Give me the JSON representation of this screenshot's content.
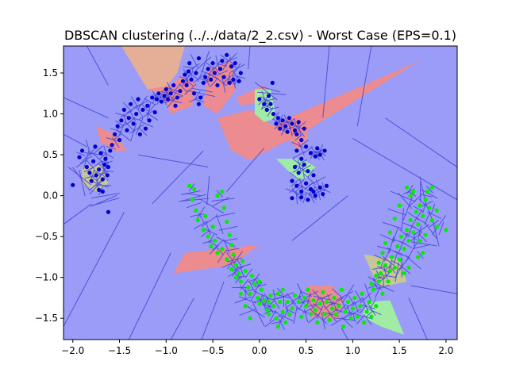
{
  "chart_data": {
    "type": "scatter",
    "title": "DBSCAN clustering (../../data/2_2.csv) - Worst Case (EPS=0.1)",
    "xlabel": "",
    "ylabel": "",
    "xlim": [
      -2.1,
      2.12
    ],
    "ylim": [
      -1.76,
      1.83
    ],
    "xticks": [
      -2.0,
      -1.5,
      -1.0,
      -0.5,
      0.0,
      0.5,
      1.0,
      1.5,
      2.0
    ],
    "xtick_labels": [
      "−2.0",
      "−1.5",
      "−1.0",
      "−0.5",
      "0.0",
      "0.5",
      "1.0",
      "1.5",
      "2.0"
    ],
    "yticks": [
      -1.5,
      -1.0,
      -0.5,
      0.0,
      0.5,
      1.0,
      1.5
    ],
    "ytick_labels": [
      "−1.5",
      "−1.0",
      "−0.5",
      "0.0",
      "0.5",
      "1.0",
      "1.5"
    ],
    "grid": false,
    "background_color": "#9a9cf8",
    "edge_color": "#4a4ad8",
    "colors": {
      "blue_points": "#0000cc",
      "green_points": "#00ee00",
      "region_red": "#f08a8a",
      "region_green": "#a0f0a0",
      "region_olive": "#c8c890",
      "region_orange": "#e8b090"
    },
    "series": [
      {
        "color": "#0000cc",
        "points": [
          [
            -2.0,
            0.13
          ],
          [
            -1.93,
            0.47
          ],
          [
            -1.9,
            0.55
          ],
          [
            -1.85,
            0.35
          ],
          [
            -1.82,
            0.28
          ],
          [
            -1.8,
            0.18
          ],
          [
            -1.78,
            0.42
          ],
          [
            -1.76,
            0.6
          ],
          [
            -1.75,
            0.25
          ],
          [
            -1.72,
            0.32
          ],
          [
            -1.7,
            0.52
          ],
          [
            -1.68,
            0.2
          ],
          [
            -1.66,
            0.38
          ],
          [
            -1.65,
            0.45
          ],
          [
            -1.63,
            0.25
          ],
          [
            -1.62,
            0.35
          ],
          [
            -1.6,
            0.55
          ],
          [
            -1.58,
            0.62
          ],
          [
            -1.68,
            0.05
          ],
          [
            -1.62,
            -0.2
          ],
          [
            -1.72,
            0.07
          ],
          [
            -1.55,
            0.75
          ],
          [
            -1.52,
            0.85
          ],
          [
            -1.5,
            0.68
          ],
          [
            -1.48,
            0.92
          ],
          [
            -1.45,
            1.05
          ],
          [
            -1.42,
            0.8
          ],
          [
            -1.4,
            0.95
          ],
          [
            -1.38,
            1.12
          ],
          [
            -1.35,
            0.88
          ],
          [
            -1.32,
            1.0
          ],
          [
            -1.3,
            1.18
          ],
          [
            -1.28,
            0.75
          ],
          [
            -1.25,
            1.05
          ],
          [
            -1.22,
            0.82
          ],
          [
            -1.2,
            1.1
          ],
          [
            -1.18,
            0.92
          ],
          [
            -1.15,
            1.2
          ],
          [
            -1.12,
            1.02
          ],
          [
            -1.1,
            1.18
          ],
          [
            -1.08,
            1.25
          ],
          [
            -1.05,
            1.15
          ],
          [
            -1.02,
            1.22
          ],
          [
            -1.0,
            1.3
          ],
          [
            -0.98,
            1.18
          ],
          [
            -0.95,
            1.25
          ],
          [
            -0.92,
            1.35
          ],
          [
            -0.9,
            1.1
          ],
          [
            -0.88,
            1.2
          ],
          [
            -0.85,
            1.28
          ],
          [
            -0.82,
            1.4
          ],
          [
            -0.8,
            1.48
          ],
          [
            -0.78,
            1.35
          ],
          [
            -0.76,
            1.52
          ],
          [
            -0.75,
            1.62
          ],
          [
            -0.73,
            1.42
          ],
          [
            -0.7,
            1.25
          ],
          [
            -0.68,
            1.5
          ],
          [
            -0.65,
            1.12
          ],
          [
            -0.65,
            1.68
          ],
          [
            -0.63,
            1.2
          ],
          [
            -0.6,
            1.38
          ],
          [
            -0.58,
            1.45
          ],
          [
            -0.55,
            1.55
          ],
          [
            -0.52,
            1.42
          ],
          [
            -0.5,
            1.62
          ],
          [
            -0.48,
            1.5
          ],
          [
            -0.45,
            1.35
          ],
          [
            -0.42,
            1.55
          ],
          [
            -0.4,
            1.65
          ],
          [
            -0.38,
            1.45
          ],
          [
            -0.35,
            1.72
          ],
          [
            -0.32,
            1.38
          ],
          [
            -0.3,
            1.58
          ],
          [
            -0.28,
            1.42
          ],
          [
            -0.26,
            1.62
          ],
          [
            -0.22,
            1.4
          ],
          [
            -0.2,
            1.5
          ],
          [
            0.0,
            1.18
          ],
          [
            0.05,
            1.12
          ],
          [
            0.08,
            1.05
          ],
          [
            0.1,
            1.22
          ],
          [
            0.12,
            1.12
          ],
          [
            0.14,
            1.38
          ],
          [
            0.15,
            1.0
          ],
          [
            0.18,
            0.88
          ],
          [
            0.2,
            0.95
          ],
          [
            0.22,
            0.82
          ],
          [
            0.25,
            0.92
          ],
          [
            0.28,
            0.85
          ],
          [
            0.3,
            0.78
          ],
          [
            0.32,
            0.95
          ],
          [
            0.35,
            0.88
          ],
          [
            0.38,
            0.8
          ],
          [
            0.4,
            0.75
          ],
          [
            0.42,
            0.9
          ],
          [
            0.45,
            0.68
          ],
          [
            0.48,
            0.82
          ],
          [
            0.4,
            0.55
          ],
          [
            0.45,
            0.45
          ],
          [
            0.5,
            0.6
          ],
          [
            0.55,
            0.52
          ],
          [
            0.6,
            0.48
          ],
          [
            0.62,
            0.58
          ],
          [
            0.65,
            0.5
          ],
          [
            0.7,
            0.55
          ],
          [
            0.38,
            0.35
          ],
          [
            0.42,
            0.28
          ],
          [
            0.48,
            0.38
          ],
          [
            0.52,
            0.3
          ],
          [
            0.58,
            0.25
          ],
          [
            0.35,
            0.18
          ],
          [
            0.4,
            0.12
          ],
          [
            0.45,
            0.05
          ],
          [
            0.5,
            0.15
          ],
          [
            0.55,
            0.08
          ],
          [
            0.6,
            0.0
          ],
          [
            0.45,
            -0.02
          ],
          [
            0.52,
            -0.05
          ],
          [
            0.58,
            0.05
          ],
          [
            0.65,
            0.1
          ],
          [
            0.68,
            0.02
          ],
          [
            0.72,
            0.12
          ],
          [
            0.35,
            -0.03
          ]
        ]
      },
      {
        "color": "#00ee00",
        "points": [
          [
            -0.75,
            0.12
          ],
          [
            -0.7,
            0.08
          ],
          [
            -0.72,
            -0.05
          ],
          [
            -0.68,
            -0.18
          ],
          [
            -0.66,
            -0.3
          ],
          [
            -0.6,
            -0.42
          ],
          [
            -0.58,
            -0.25
          ],
          [
            -0.55,
            -0.5
          ],
          [
            -0.52,
            -0.62
          ],
          [
            -0.5,
            -0.38
          ],
          [
            -0.48,
            -0.55
          ],
          [
            -0.45,
            -0.7
          ],
          [
            -0.45,
            0.0
          ],
          [
            -0.4,
            0.05
          ],
          [
            -0.38,
            -0.15
          ],
          [
            -0.35,
            -0.32
          ],
          [
            -0.32,
            -0.48
          ],
          [
            -0.3,
            -0.6
          ],
          [
            -0.28,
            -0.72
          ],
          [
            -0.25,
            -0.85
          ],
          [
            -0.22,
            -0.95
          ],
          [
            -0.2,
            -1.05
          ],
          [
            -0.18,
            -0.8
          ],
          [
            -0.15,
            -0.92
          ],
          [
            -0.12,
            -1.12
          ],
          [
            -0.1,
            -1.2
          ],
          [
            -0.08,
            -0.98
          ],
          [
            -0.05,
            -1.08
          ],
          [
            -0.02,
            -1.25
          ],
          [
            0.0,
            -1.32
          ],
          [
            0.02,
            -1.15
          ],
          [
            0.05,
            -1.28
          ],
          [
            0.08,
            -1.4
          ],
          [
            0.1,
            -1.45
          ],
          [
            0.12,
            -1.22
          ],
          [
            0.15,
            -1.35
          ],
          [
            0.18,
            -1.5
          ],
          [
            0.2,
            -1.6
          ],
          [
            0.22,
            -1.3
          ],
          [
            0.25,
            -1.42
          ],
          [
            0.28,
            -1.55
          ],
          [
            0.3,
            -1.3
          ],
          [
            0.32,
            -1.45
          ],
          [
            0.35,
            -1.38
          ],
          [
            0.38,
            -1.22
          ],
          [
            0.42,
            -1.3
          ],
          [
            0.45,
            -1.48
          ],
          [
            0.48,
            -1.25
          ],
          [
            0.5,
            -1.35
          ],
          [
            0.52,
            -1.15
          ],
          [
            0.55,
            -1.45
          ],
          [
            0.58,
            -1.28
          ],
          [
            0.6,
            -1.4
          ],
          [
            0.62,
            -1.55
          ],
          [
            0.65,
            -1.32
          ],
          [
            0.68,
            -1.18
          ],
          [
            0.7,
            -1.45
          ],
          [
            0.72,
            -1.3
          ],
          [
            0.75,
            -1.52
          ],
          [
            0.78,
            -1.38
          ],
          [
            0.8,
            -1.25
          ],
          [
            0.82,
            -1.45
          ],
          [
            0.85,
            -1.35
          ],
          [
            0.88,
            -1.15
          ],
          [
            0.9,
            -1.6
          ],
          [
            0.92,
            -1.42
          ],
          [
            0.95,
            -1.3
          ],
          [
            0.98,
            -1.5
          ],
          [
            1.0,
            -1.38
          ],
          [
            1.02,
            -1.25
          ],
          [
            1.05,
            -1.48
          ],
          [
            1.08,
            -1.35
          ],
          [
            1.1,
            -1.2
          ],
          [
            1.12,
            -1.55
          ],
          [
            1.15,
            -1.42
          ],
          [
            1.18,
            -1.3
          ],
          [
            1.2,
            -1.48
          ],
          [
            1.22,
            -1.15
          ],
          [
            1.25,
            -1.35
          ],
          [
            1.28,
            -1.05
          ],
          [
            1.3,
            -0.95
          ],
          [
            1.32,
            -1.2
          ],
          [
            1.35,
            -0.85
          ],
          [
            1.38,
            -1.05
          ],
          [
            1.4,
            -0.92
          ],
          [
            1.42,
            -0.75
          ],
          [
            1.45,
            -0.88
          ],
          [
            1.48,
            -0.62
          ],
          [
            1.5,
            -0.78
          ],
          [
            1.52,
            -0.5
          ],
          [
            1.55,
            -0.65
          ],
          [
            1.58,
            -0.42
          ],
          [
            1.6,
            -0.55
          ],
          [
            1.62,
            -0.3
          ],
          [
            1.65,
            -0.45
          ],
          [
            1.68,
            -0.2
          ],
          [
            1.7,
            -0.35
          ],
          [
            1.72,
            -0.12
          ],
          [
            1.75,
            -0.25
          ],
          [
            1.78,
            -0.05
          ],
          [
            1.8,
            0.05
          ],
          [
            1.82,
            -0.15
          ],
          [
            1.85,
            0.1
          ],
          [
            1.9,
            -0.38
          ],
          [
            2.0,
            -0.42
          ],
          [
            1.62,
            0.0
          ],
          [
            1.65,
            0.05
          ],
          [
            1.58,
            0.1
          ],
          [
            1.5,
            -0.12
          ],
          [
            1.45,
            -0.28
          ],
          [
            1.4,
            -0.45
          ],
          [
            1.35,
            -0.58
          ],
          [
            1.32,
            -0.7
          ],
          [
            1.28,
            -0.82
          ],
          [
            1.25,
            -0.98
          ],
          [
            1.2,
            -1.08
          ],
          [
            1.55,
            -0.95
          ],
          [
            1.6,
            -0.88
          ],
          [
            1.7,
            -0.75
          ],
          [
            1.75,
            -0.7
          ],
          [
            1.85,
            -0.3
          ],
          [
            1.9,
            -0.18
          ],
          [
            1.72,
            -0.55
          ],
          [
            1.78,
            -0.48
          ],
          [
            0.2,
            -1.2
          ],
          [
            0.25,
            -1.15
          ],
          [
            0.1,
            -1.3
          ],
          [
            0.0,
            -1.05
          ],
          [
            -0.25,
            -1.0
          ],
          [
            -0.3,
            -0.9
          ],
          [
            -0.35,
            -0.78
          ],
          [
            -0.4,
            -0.65
          ],
          [
            -0.2,
            -1.2
          ],
          [
            -0.15,
            -1.35
          ],
          [
            -0.1,
            -1.5
          ]
        ]
      }
    ]
  }
}
